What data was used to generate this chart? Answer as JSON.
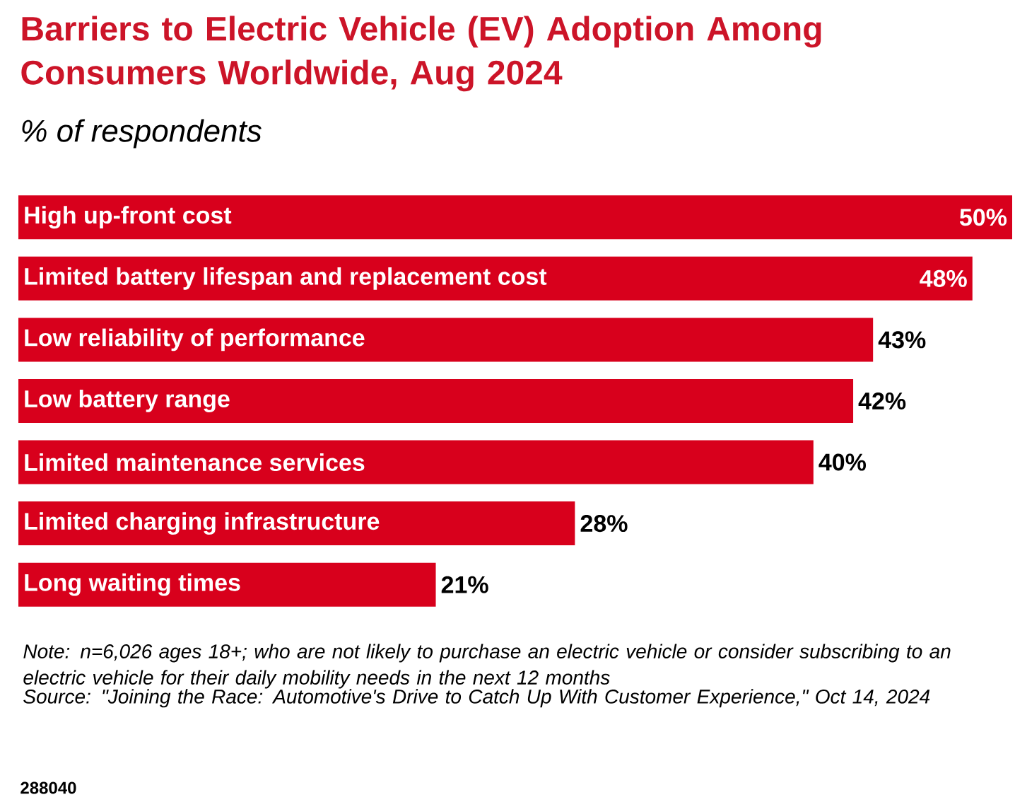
{
  "chart_data": {
    "type": "bar",
    "orientation": "horizontal",
    "title": "Barriers to Electric Vehicle (EV) Adoption Among Consumers Worldwide, Aug 2024",
    "subtitle": "% of respondents",
    "categories": [
      "High up-front cost",
      "Limited battery lifespan and replacement cost",
      "Low reliability of performance",
      "Low battery range",
      "Limited maintenance services",
      "Limited charging infrastructure",
      "Long waiting times"
    ],
    "values": [
      50,
      48,
      43,
      42,
      40,
      28,
      21
    ],
    "value_labels": [
      "50%",
      "48%",
      "43%",
      "42%",
      "40%",
      "28%",
      "21%"
    ],
    "color": "#d8001c",
    "annotations": [
      "Note: n=6,026 ages 18+; who are not likely to purchase an electric vehicle or consider subscribing to an electric vehicle for their daily mobility needs in the next 12 months",
      "Source: \"Joining the Race: Automotive's Drive to Catch Up With Customer Experience,\" Oct 14, 2024",
      "288040"
    ]
  }
}
